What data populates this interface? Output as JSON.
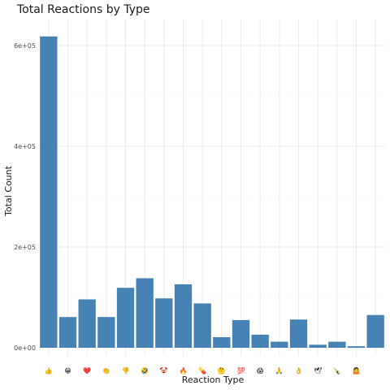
{
  "chart_data": {
    "type": "bar",
    "title": "Total Reactions by Type",
    "xlabel": "Reaction Type",
    "ylabel": "Total Count",
    "categories": [
      "👍",
      "😁",
      "❤️",
      "👏",
      "👎",
      "🤣",
      "🤡",
      "🔥",
      "💊",
      "🤔",
      "💯",
      "😱",
      "🙏",
      "👌",
      "🕊",
      "🍾",
      "🤷",
      "?"
    ],
    "category_labels": [
      "👍",
      "😁",
      "❤️",
      "👏",
      "👎",
      "🤣",
      "🤡",
      "🔥",
      "💊",
      "🤔",
      "💯",
      "😱",
      "🙏",
      "👌",
      "🕊",
      "🍾",
      "🤷",
      ""
    ],
    "values": [
      618000,
      61000,
      96000,
      61000,
      119000,
      138000,
      98000,
      126000,
      88000,
      21000,
      55000,
      26000,
      12000,
      56000,
      6000,
      12000,
      3000,
      65000
    ],
    "ylim": [
      0,
      640000
    ],
    "yticks": [
      0,
      200000,
      400000,
      600000
    ],
    "ytick_labels": [
      "0e+00",
      "2e+05",
      "4e+05",
      "6e+05"
    ],
    "grid": true,
    "bar_color": "#4682b4"
  }
}
